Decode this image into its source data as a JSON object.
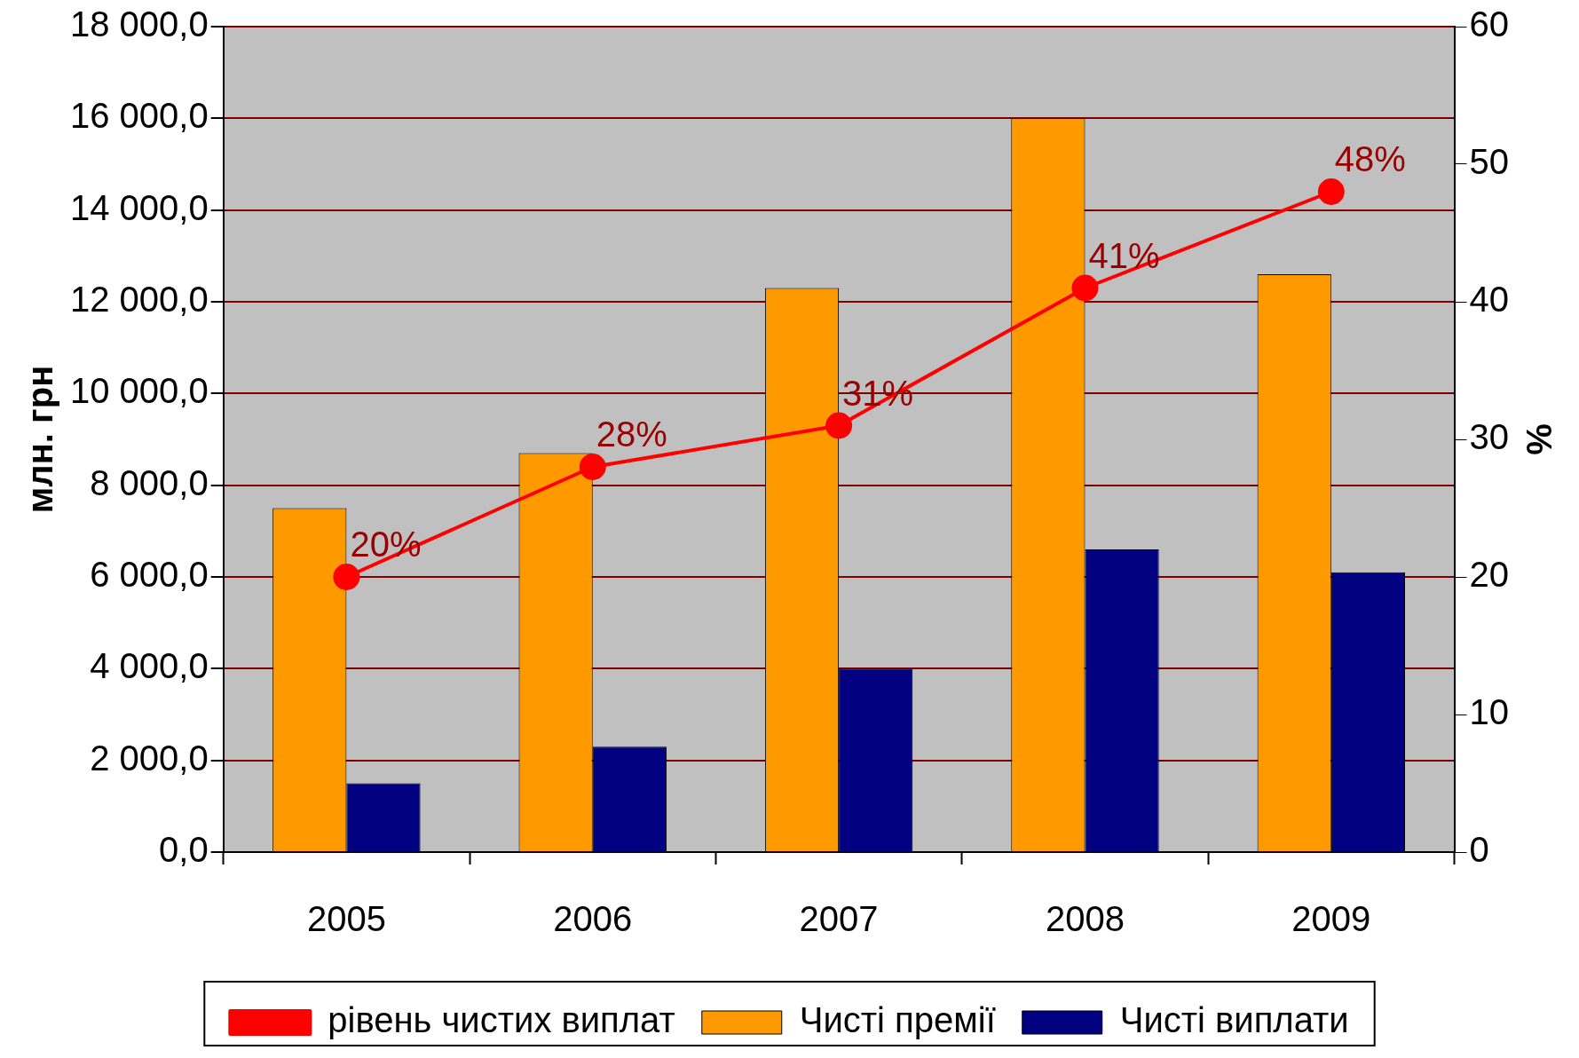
{
  "chart_data": {
    "type": "bar",
    "categories": [
      "2005",
      "2006",
      "2007",
      "2008",
      "2009"
    ],
    "ylabel": "млн. грн",
    "y2label": "%",
    "ylim": [
      0,
      18000
    ],
    "yticks": [
      {
        "value": 0,
        "label": "0,0"
      },
      {
        "value": 2000,
        "label": "2 000,0"
      },
      {
        "value": 4000,
        "label": "4 000,0"
      },
      {
        "value": 6000,
        "label": "6 000,0"
      },
      {
        "value": 8000,
        "label": "8 000,0"
      },
      {
        "value": 10000,
        "label": "10 000,0"
      },
      {
        "value": 12000,
        "label": "12 000,0"
      },
      {
        "value": 14000,
        "label": "14 000,0"
      },
      {
        "value": 16000,
        "label": "16 000,0"
      },
      {
        "value": 18000,
        "label": "18 000,0"
      }
    ],
    "y2lim": [
      0,
      60
    ],
    "y2ticks": [
      0,
      10,
      20,
      30,
      40,
      50,
      60
    ],
    "grid": "y",
    "legend": "bottom",
    "series": [
      {
        "name": "Чисті премії",
        "color": "#ff9900",
        "values": [
          7500,
          8700,
          12300,
          16000,
          12600
        ]
      },
      {
        "name": "Чисті виплати",
        "color": "#000080",
        "values": [
          1500,
          2300,
          4000,
          6600,
          6100
        ]
      },
      {
        "name": "рівень чистих виплат",
        "type": "line",
        "axis": "y2",
        "color": "#ff0000",
        "marker": "circle",
        "line_style": "solid",
        "values": [
          20,
          28,
          31,
          41,
          48
        ],
        "value_labels": [
          "20%",
          "28%",
          "31%",
          "41%",
          "48%"
        ]
      }
    ]
  }
}
